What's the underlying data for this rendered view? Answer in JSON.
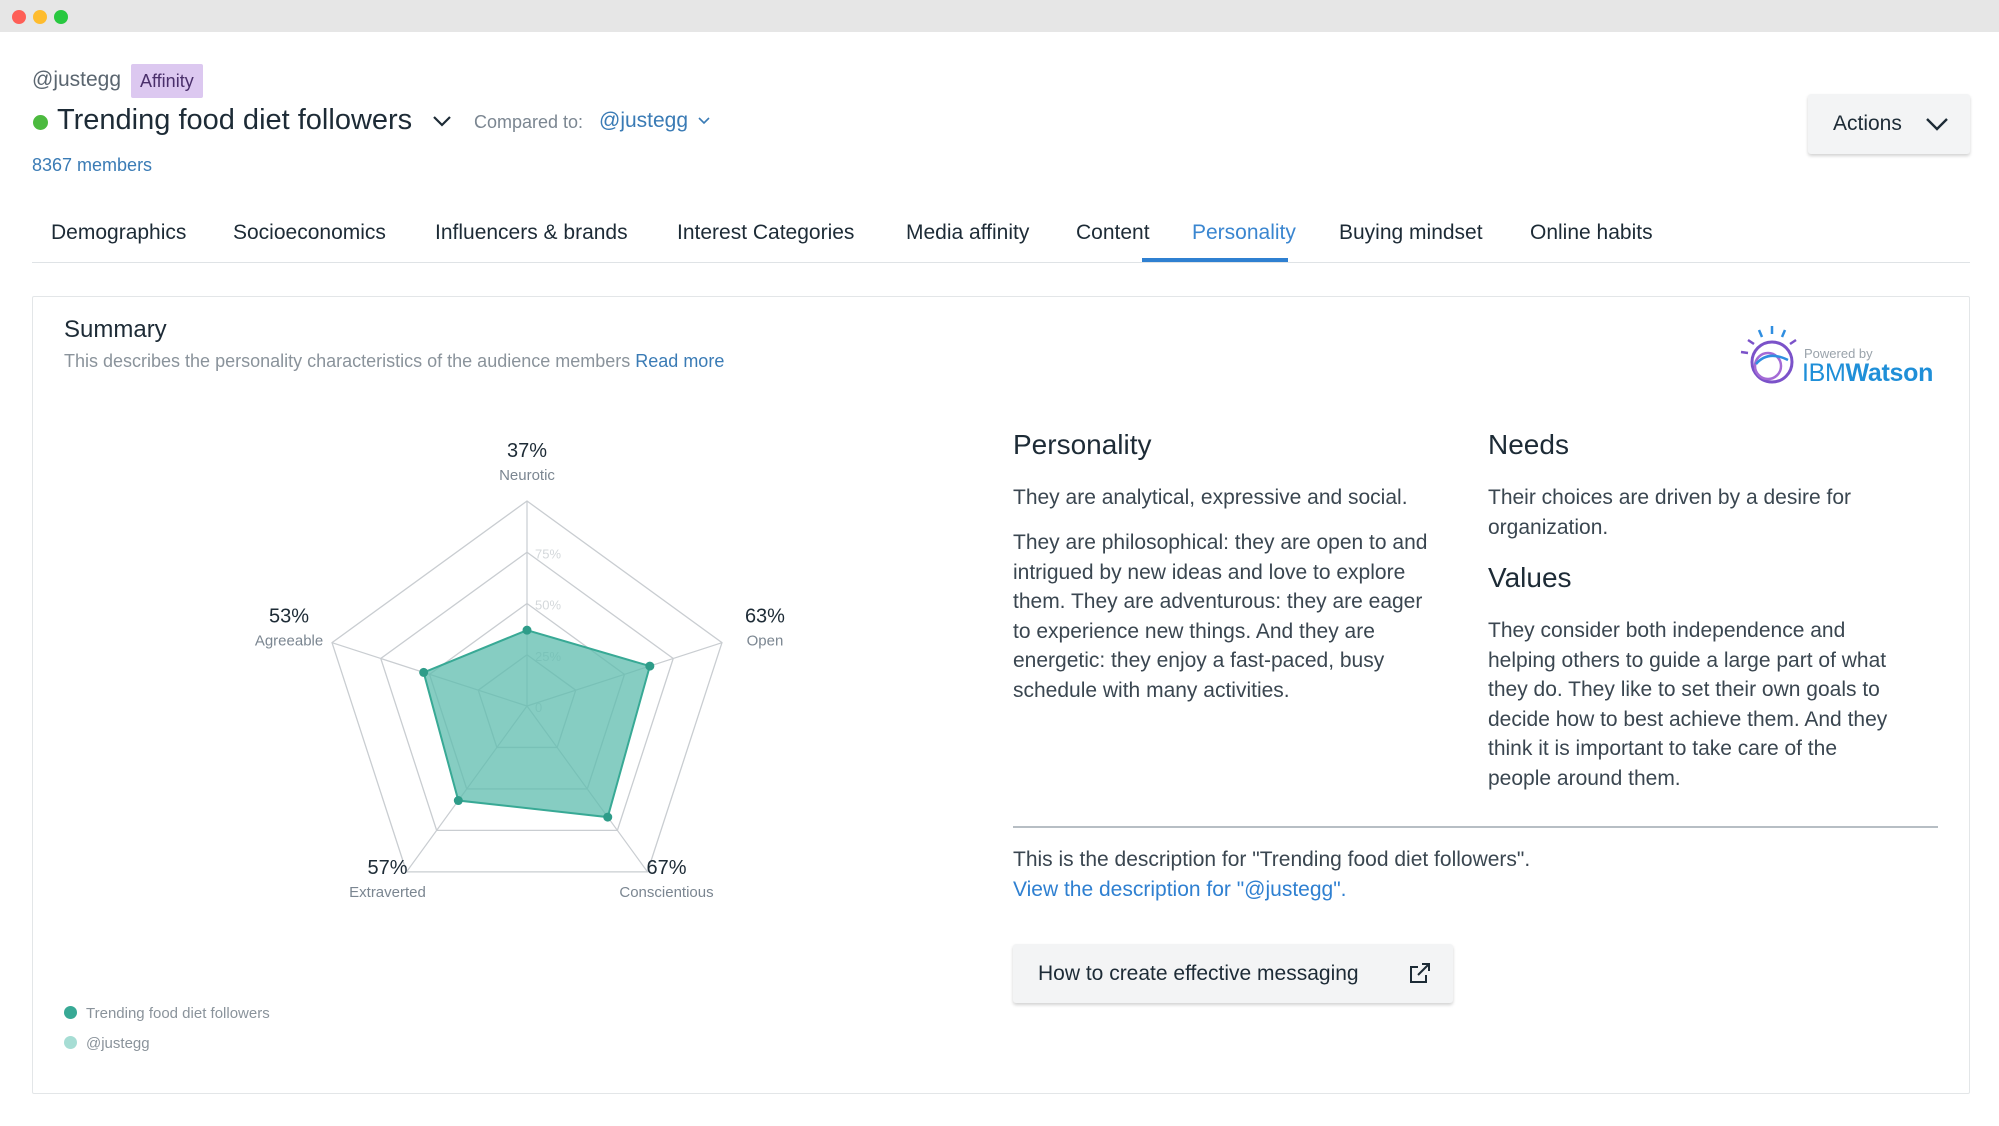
{
  "window": {
    "controls": [
      "close",
      "minimize",
      "maximize"
    ]
  },
  "header": {
    "handle": "@justegg",
    "badge": "Affinity",
    "audience_title": "Trending food diet followers",
    "compared_label": "Compared to:",
    "compared_value": "@justegg",
    "members": "8367 members",
    "actions_label": "Actions"
  },
  "tabs": [
    {
      "label": "Demographics"
    },
    {
      "label": "Socioeconomics"
    },
    {
      "label": "Influencers & brands"
    },
    {
      "label": "Interest Categories"
    },
    {
      "label": "Media affinity"
    },
    {
      "label": "Content"
    },
    {
      "label": "Personality",
      "active": true
    },
    {
      "label": "Buying mindset"
    },
    {
      "label": "Online habits"
    }
  ],
  "summary": {
    "title": "Summary",
    "description": "This describes the personality characteristics of the audience members",
    "read_more": "Read more",
    "powered_by": "Powered by",
    "watson_ibm": "IBM",
    "watson_name": "Watson"
  },
  "chart_data": {
    "type": "radar",
    "axes": [
      "Neurotic",
      "Open",
      "Conscientious",
      "Extraverted",
      "Agreeable"
    ],
    "axis_labels": [
      "Neurotic",
      "Open",
      "Conscientious",
      "Extraverted",
      "Agreeable"
    ],
    "value_labels": [
      "37%",
      "63%",
      "67%",
      "57%",
      "53%"
    ],
    "ring_labels": [
      "75%",
      "50%",
      "25%",
      "0"
    ],
    "rlim": [
      0,
      100
    ],
    "series": [
      {
        "name": "Trending food diet followers",
        "values": [
          37,
          63,
          67,
          57,
          53
        ],
        "color": "#5dbcad"
      }
    ],
    "legend": [
      {
        "name": "Trending food diet followers",
        "color": "#38a995"
      },
      {
        "name": "@justegg",
        "color": "#a6ddd4"
      }
    ]
  },
  "personality": {
    "heading": "Personality",
    "p1": "They are analytical, expressive and social.",
    "p2_lines": [
      "They are philosophical: they are open to and",
      "intrigued by new ideas and love to explore",
      "them. They are adventurous: they are eager",
      "to experience new things. And they are",
      "energetic: they enjoy a fast-paced, busy",
      "schedule with many activities."
    ]
  },
  "needs": {
    "heading": "Needs",
    "lines": [
      "Their choices are driven by a desire for",
      "organization."
    ]
  },
  "values": {
    "heading": "Values",
    "lines": [
      "They consider both independence and",
      "helping others to guide a large part of what",
      "they do. They like to set their own goals to",
      "decide how to best achieve them. And they",
      "think it is important to take care of the",
      "people around them."
    ]
  },
  "footer": {
    "description_line": "This is the description for \"Trending food diet followers\".",
    "view_link": "View the description for \"@justegg\".",
    "messaging_button": "How to create effective messaging"
  },
  "colors": {
    "accent": "#2f80d1",
    "status_green": "#4cba3f",
    "badge_bg": "#dcc8f0",
    "radar_fill": "#5dbcad"
  }
}
